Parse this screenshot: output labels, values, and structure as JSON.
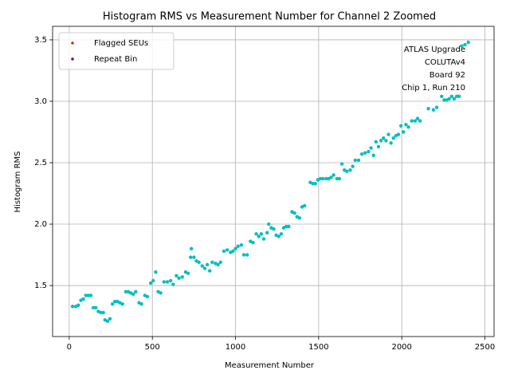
{
  "chart_data": {
    "type": "scatter",
    "title": "Histogram RMS vs Measurement Number for Channel 2 Zoomed",
    "xlabel": "Measurement Number",
    "ylabel": "Histogram RMS",
    "annotation": [
      "ATLAS Upgrade",
      "COLUTAv4",
      "Board 92",
      "Chip 1, Run 210"
    ],
    "color": "#00bfbf",
    "x": [
      20,
      40,
      55,
      70,
      85,
      100,
      115,
      130,
      145,
      160,
      175,
      190,
      205,
      215,
      230,
      245,
      260,
      275,
      290,
      305,
      320,
      340,
      355,
      370,
      385,
      400,
      420,
      435,
      455,
      470,
      490,
      505,
      520,
      535,
      550,
      570,
      590,
      610,
      625,
      645,
      660,
      680,
      700,
      715,
      730,
      735,
      750,
      765,
      780,
      800,
      815,
      830,
      845,
      860,
      880,
      895,
      910,
      930,
      950,
      970,
      985,
      1000,
      1015,
      1035,
      1050,
      1070,
      1090,
      1105,
      1125,
      1140,
      1155,
      1170,
      1190,
      1200,
      1215,
      1230,
      1245,
      1260,
      1275,
      1290,
      1305,
      1320,
      1340,
      1355,
      1370,
      1385,
      1400,
      1415,
      1450,
      1465,
      1480,
      1495,
      1510,
      1525,
      1545,
      1560,
      1575,
      1590,
      1610,
      1625,
      1640,
      1655,
      1670,
      1690,
      1705,
      1720,
      1740,
      1760,
      1780,
      1800,
      1815,
      1830,
      1845,
      1860,
      1875,
      1890,
      1905,
      1920,
      1935,
      1950,
      1965,
      1980,
      1995,
      2010,
      2025,
      2040,
      2060,
      2080,
      2095,
      2110,
      2160,
      2190,
      2210,
      2240,
      2255,
      2270,
      2285,
      2300,
      2315,
      2330,
      2345,
      2360,
      2380,
      2400
    ],
    "values": [
      1.33,
      1.33,
      1.34,
      1.38,
      1.39,
      1.42,
      1.42,
      1.42,
      1.32,
      1.32,
      1.29,
      1.28,
      1.28,
      1.22,
      1.21,
      1.23,
      1.35,
      1.37,
      1.37,
      1.36,
      1.35,
      1.45,
      1.45,
      1.44,
      1.43,
      1.45,
      1.36,
      1.35,
      1.42,
      1.41,
      1.52,
      1.54,
      1.61,
      1.45,
      1.44,
      1.53,
      1.53,
      1.54,
      1.51,
      1.58,
      1.56,
      1.57,
      1.61,
      1.6,
      1.73,
      1.8,
      1.73,
      1.7,
      1.69,
      1.66,
      1.64,
      1.67,
      1.62,
      1.69,
      1.68,
      1.67,
      1.69,
      1.78,
      1.79,
      1.77,
      1.78,
      1.8,
      1.82,
      1.83,
      1.75,
      1.75,
      1.86,
      1.85,
      1.92,
      1.9,
      1.92,
      1.88,
      1.93,
      2.0,
      1.97,
      1.96,
      1.91,
      1.9,
      1.92,
      1.97,
      1.98,
      1.98,
      2.1,
      2.09,
      2.06,
      2.05,
      2.14,
      2.15,
      2.34,
      2.33,
      2.33,
      2.36,
      2.37,
      2.37,
      2.37,
      2.37,
      2.38,
      2.4,
      2.37,
      2.37,
      2.49,
      2.44,
      2.43,
      2.44,
      2.47,
      2.52,
      2.52,
      2.57,
      2.58,
      2.59,
      2.62,
      2.56,
      2.67,
      2.63,
      2.68,
      2.7,
      2.68,
      2.73,
      2.66,
      2.7,
      2.72,
      2.73,
      2.8,
      2.75,
      2.81,
      2.79,
      2.84,
      2.84,
      2.86,
      2.84,
      2.94,
      2.93,
      2.95,
      3.04,
      3.01,
      3.01,
      3.02,
      3.04,
      3.02,
      3.04,
      3.04,
      3.45,
      3.46,
      3.48
    ],
    "series": [
      {
        "name": "Flagged SEUs",
        "color": "#d62728",
        "x": [],
        "values": []
      },
      {
        "name": "Repeat Bin",
        "color": "#800080",
        "x": [],
        "values": []
      }
    ],
    "legend": "upper left",
    "xlim": [
      -100,
      2555
    ],
    "ylim": [
      1.085,
      3.61
    ],
    "xticks": [
      0,
      500,
      1000,
      1500,
      2000,
      2500
    ],
    "yticks": [
      1.5,
      {
        "value": 2.0,
        "label": "2.0"
      },
      2.5,
      {
        "value": 3.0,
        "label": "3.0"
      },
      3.5
    ],
    "grid": true
  }
}
